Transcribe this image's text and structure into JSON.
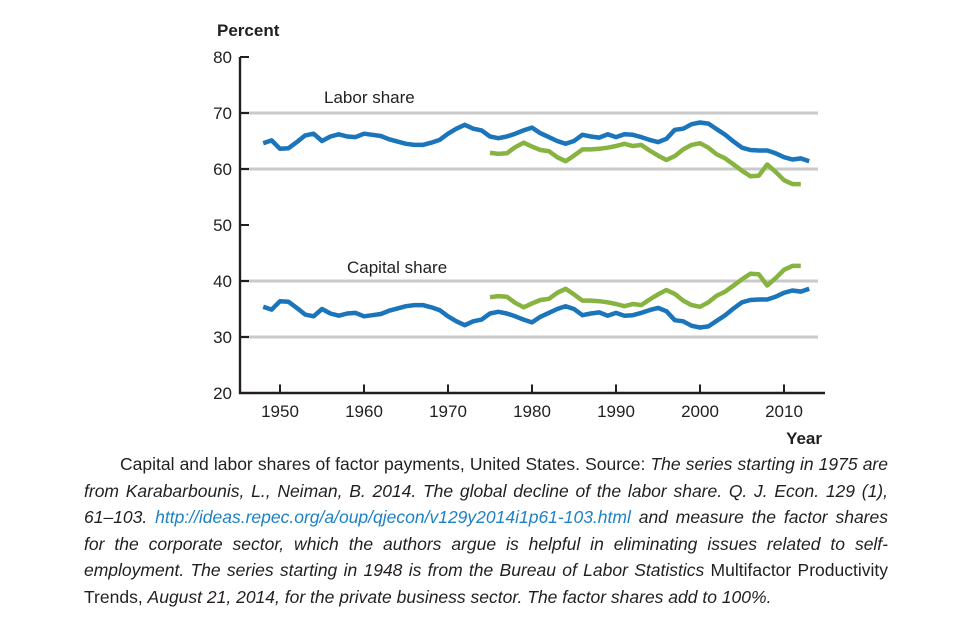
{
  "colors": {
    "blue_series": "#1b75bb",
    "green_series": "#87b440",
    "gridline": "#cacaca",
    "axis": "#231f20",
    "text": "#231f20",
    "link": "#1e82c4",
    "background": "#ffffff"
  },
  "chart_data": {
    "type": "line",
    "title": "Capital and labor shares of factor payments, United States",
    "ylabel": "Percent",
    "xlabel": "Year",
    "ylim": [
      20,
      80
    ],
    "xlim": [
      1945,
      2015
    ],
    "y_ticks": [
      80,
      70,
      60,
      50,
      40,
      30,
      20
    ],
    "x_ticks": [
      1950,
      1960,
      1970,
      1980,
      1990,
      2000,
      2010
    ],
    "gridlines_at": [
      70,
      60,
      40,
      30
    ],
    "legend_position": "inline-annotations",
    "annotations": [
      "Labor share",
      "Capital share"
    ],
    "series": [
      {
        "id": "labor-share-1948-series",
        "name": "Labor share, series starting 1948 (BLS, private business sector)",
        "color": "#1b75bb",
        "x": [
          1948,
          1949,
          1950,
          1951,
          1952,
          1953,
          1954,
          1955,
          1956,
          1957,
          1958,
          1959,
          1960,
          1961,
          1962,
          1963,
          1964,
          1965,
          1966,
          1967,
          1968,
          1969,
          1970,
          1971,
          1972,
          1973,
          1974,
          1975,
          1976,
          1977,
          1978,
          1979,
          1980,
          1981,
          1982,
          1983,
          1984,
          1985,
          1986,
          1987,
          1988,
          1989,
          1990,
          1991,
          1992,
          1993,
          1994,
          1995,
          1996,
          1997,
          1998,
          1999,
          2000,
          2001,
          2002,
          2003,
          2004,
          2005,
          2006,
          2007,
          2008,
          2009,
          2010,
          2011,
          2012,
          2013
        ],
        "values": [
          64.6,
          65.1,
          63.6,
          63.7,
          64.8,
          66.0,
          66.3,
          65.0,
          65.8,
          66.2,
          65.8,
          65.7,
          66.3,
          66.1,
          65.9,
          65.3,
          64.9,
          64.5,
          64.3,
          64.3,
          64.7,
          65.2,
          66.3,
          67.2,
          67.9,
          67.2,
          66.9,
          65.8,
          65.5,
          65.8,
          66.3,
          66.9,
          67.4,
          66.4,
          65.7,
          65.0,
          64.5,
          65.0,
          66.1,
          65.8,
          65.6,
          66.2,
          65.7,
          66.2,
          66.1,
          65.7,
          65.2,
          64.8,
          65.4,
          67.0,
          67.2,
          68.0,
          68.3,
          68.1,
          67.1,
          66.1,
          64.9,
          63.8,
          63.4,
          63.3,
          63.3,
          62.8,
          62.1,
          61.7,
          61.9,
          61.4
        ]
      },
      {
        "id": "labor-share-1975-series",
        "name": "Labor share, series starting 1975 (Karabarbounis-Neiman, corporate sector)",
        "color": "#87b440",
        "x": [
          1975,
          1976,
          1977,
          1978,
          1979,
          1980,
          1981,
          1982,
          1983,
          1984,
          1985,
          1986,
          1987,
          1988,
          1989,
          1990,
          1991,
          1992,
          1993,
          1994,
          1995,
          1996,
          1997,
          1998,
          1999,
          2000,
          2001,
          2002,
          2003,
          2004,
          2005,
          2006,
          2007,
          2008,
          2009,
          2010,
          2011,
          2012
        ],
        "values": [
          62.9,
          62.7,
          62.8,
          63.9,
          64.7,
          64.0,
          63.4,
          63.2,
          62.1,
          61.4,
          62.4,
          63.5,
          63.5,
          63.6,
          63.8,
          64.1,
          64.5,
          64.1,
          64.3,
          63.3,
          62.4,
          61.6,
          62.3,
          63.5,
          64.3,
          64.6,
          63.8,
          62.6,
          61.9,
          60.8,
          59.7,
          58.7,
          58.8,
          60.8,
          59.5,
          58.0,
          57.3,
          57.3
        ]
      },
      {
        "id": "capital-share-1948-series",
        "name": "Capital share, series starting 1948 (BLS, private business sector)",
        "color": "#1b75bb",
        "x": [
          1948,
          1949,
          1950,
          1951,
          1952,
          1953,
          1954,
          1955,
          1956,
          1957,
          1958,
          1959,
          1960,
          1961,
          1962,
          1963,
          1964,
          1965,
          1966,
          1967,
          1968,
          1969,
          1970,
          1971,
          1972,
          1973,
          1974,
          1975,
          1976,
          1977,
          1978,
          1979,
          1980,
          1981,
          1982,
          1983,
          1984,
          1985,
          1986,
          1987,
          1988,
          1989,
          1990,
          1991,
          1992,
          1993,
          1994,
          1995,
          1996,
          1997,
          1998,
          1999,
          2000,
          2001,
          2002,
          2003,
          2004,
          2005,
          2006,
          2007,
          2008,
          2009,
          2010,
          2011,
          2012,
          2013
        ],
        "values": [
          35.4,
          34.9,
          36.4,
          36.3,
          35.2,
          34.0,
          33.7,
          35.0,
          34.2,
          33.8,
          34.2,
          34.3,
          33.7,
          33.9,
          34.1,
          34.7,
          35.1,
          35.5,
          35.7,
          35.7,
          35.3,
          34.8,
          33.7,
          32.8,
          32.1,
          32.8,
          33.1,
          34.2,
          34.5,
          34.2,
          33.7,
          33.1,
          32.6,
          33.6,
          34.3,
          35.0,
          35.5,
          35.0,
          33.9,
          34.2,
          34.4,
          33.8,
          34.3,
          33.8,
          33.9,
          34.3,
          34.8,
          35.2,
          34.6,
          33.0,
          32.8,
          32.0,
          31.7,
          31.9,
          32.9,
          33.9,
          35.1,
          36.2,
          36.6,
          36.7,
          36.7,
          37.2,
          37.9,
          38.3,
          38.1,
          38.6
        ]
      },
      {
        "id": "capital-share-1975-series",
        "name": "Capital share, series starting 1975 (Karabarbounis-Neiman, corporate sector)",
        "color": "#87b440",
        "x": [
          1975,
          1976,
          1977,
          1978,
          1979,
          1980,
          1981,
          1982,
          1983,
          1984,
          1985,
          1986,
          1987,
          1988,
          1989,
          1990,
          1991,
          1992,
          1993,
          1994,
          1995,
          1996,
          1997,
          1998,
          1999,
          2000,
          2001,
          2002,
          2003,
          2004,
          2005,
          2006,
          2007,
          2008,
          2009,
          2010,
          2011,
          2012
        ],
        "values": [
          37.1,
          37.3,
          37.2,
          36.1,
          35.3,
          36.0,
          36.6,
          36.8,
          37.9,
          38.6,
          37.6,
          36.5,
          36.5,
          36.4,
          36.2,
          35.9,
          35.5,
          35.9,
          35.7,
          36.7,
          37.6,
          38.4,
          37.7,
          36.5,
          35.7,
          35.4,
          36.2,
          37.4,
          38.1,
          39.2,
          40.3,
          41.3,
          41.2,
          39.2,
          40.5,
          42.0,
          42.7,
          42.7
        ]
      }
    ]
  },
  "caption": {
    "segments": [
      {
        "style": "roman",
        "text": "Capital and labor shares of factor payments, United States. Source: "
      },
      {
        "style": "italic",
        "text": "The series starting in 1975 are from Karabarbounis, L., Neiman, B. 2014. The global decline of the labor share. Q. J. Econ. 129 (1), 61–103. "
      },
      {
        "style": "link-italic",
        "text": "http://ideas.repec.org/a/oup/qjecon/v129y2014i1p61-103.html"
      },
      {
        "style": "italic",
        "text": " and measure the factor shares for the corporate sector, which the authors argue is helpful in eliminating issues related to self-employment. The series starting in 1948 is from the Bureau of Labor Statistics "
      },
      {
        "style": "roman",
        "text": "Multifactor Productivity Trends, "
      },
      {
        "style": "italic",
        "text": "August 21, 2014, for the private business sector. The factor shares add to 100%."
      }
    ]
  }
}
